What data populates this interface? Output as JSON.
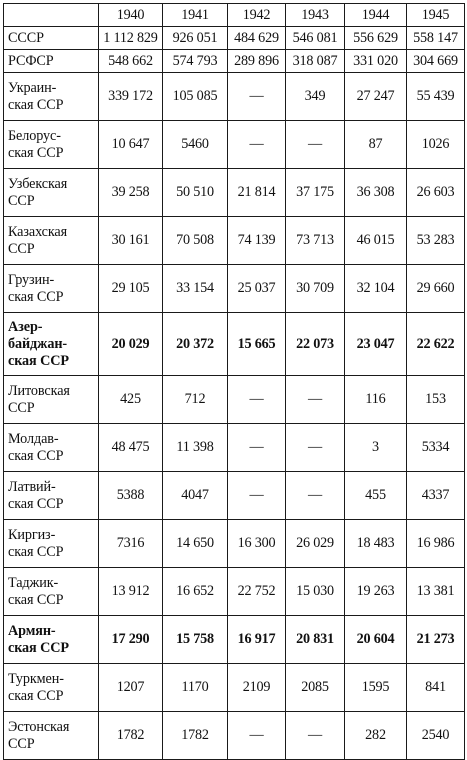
{
  "years": [
    "1940",
    "1941",
    "1942",
    "1943",
    "1944",
    "1945"
  ],
  "rows": [
    {
      "name_lines": [
        "СССР"
      ],
      "values": [
        "1 112 829",
        "926 051",
        "484 629",
        "546 081",
        "556 629",
        "558 147"
      ],
      "bold": false
    },
    {
      "name_lines": [
        "РСФСР"
      ],
      "values": [
        "548 662",
        "574 793",
        "289 896",
        "318 087",
        "331 020",
        "304 669"
      ],
      "bold": false
    },
    {
      "name_lines": [
        "Украин-",
        "ская ССР"
      ],
      "values": [
        "339 172",
        "105 085",
        "—",
        "349",
        "27 247",
        "55 439"
      ],
      "bold": false
    },
    {
      "name_lines": [
        "Белорус-",
        "ская ССР"
      ],
      "values": [
        "10 647",
        "5460",
        "—",
        "—",
        "87",
        "1026"
      ],
      "bold": false
    },
    {
      "name_lines": [
        "Узбекская",
        "ССР"
      ],
      "values": [
        "39 258",
        "50 510",
        "21 814",
        "37 175",
        "36 308",
        "26 603"
      ],
      "bold": false
    },
    {
      "name_lines": [
        "Казахская",
        "ССР"
      ],
      "values": [
        "30 161",
        "70 508",
        "74 139",
        "73 713",
        "46 015",
        "53 283"
      ],
      "bold": false
    },
    {
      "name_lines": [
        "Грузин-",
        "ская ССР"
      ],
      "values": [
        "29 105",
        "33 154",
        "25 037",
        "30 709",
        "32 104",
        "29 660"
      ],
      "bold": false
    },
    {
      "name_lines": [
        "Азер-",
        "байджан-",
        "ская ССР"
      ],
      "values": [
        "20 029",
        "20 372",
        "15 665",
        "22 073",
        "23 047",
        "22 622"
      ],
      "bold": true
    },
    {
      "name_lines": [
        "Литовская",
        "ССР"
      ],
      "values": [
        "425",
        "712",
        "—",
        "—",
        "116",
        "153"
      ],
      "bold": false
    },
    {
      "name_lines": [
        "Молдав-",
        "ская ССР"
      ],
      "values": [
        "48 475",
        "11 398",
        "—",
        "—",
        "3",
        "5334"
      ],
      "bold": false
    },
    {
      "name_lines": [
        "Латвий-",
        "ская ССР"
      ],
      "values": [
        "5388",
        "4047",
        "—",
        "—",
        "455",
        "4337"
      ],
      "bold": false
    },
    {
      "name_lines": [
        "Киргиз-",
        "ская ССР"
      ],
      "values": [
        "7316",
        "14 650",
        "16 300",
        "26 029",
        "18 483",
        "16 986"
      ],
      "bold": false
    },
    {
      "name_lines": [
        "Таджик-",
        "ская ССР"
      ],
      "values": [
        "13 912",
        "16 652",
        "22 752",
        "15 030",
        "19 263",
        "13 381"
      ],
      "bold": false
    },
    {
      "name_lines": [
        "Армян-",
        "ская ССР"
      ],
      "values": [
        "17 290",
        "15 758",
        "16 917",
        "20 831",
        "20 604",
        "21 273"
      ],
      "bold": true
    },
    {
      "name_lines": [
        "Туркмен-",
        "ская ССР"
      ],
      "values": [
        "1207",
        "1170",
        "2109",
        "2085",
        "1595",
        "841"
      ],
      "bold": false
    },
    {
      "name_lines": [
        "Эстонская",
        "ССР"
      ],
      "values": [
        "1782",
        "1782",
        "—",
        "—",
        "282",
        "2540"
      ],
      "bold": false
    }
  ]
}
